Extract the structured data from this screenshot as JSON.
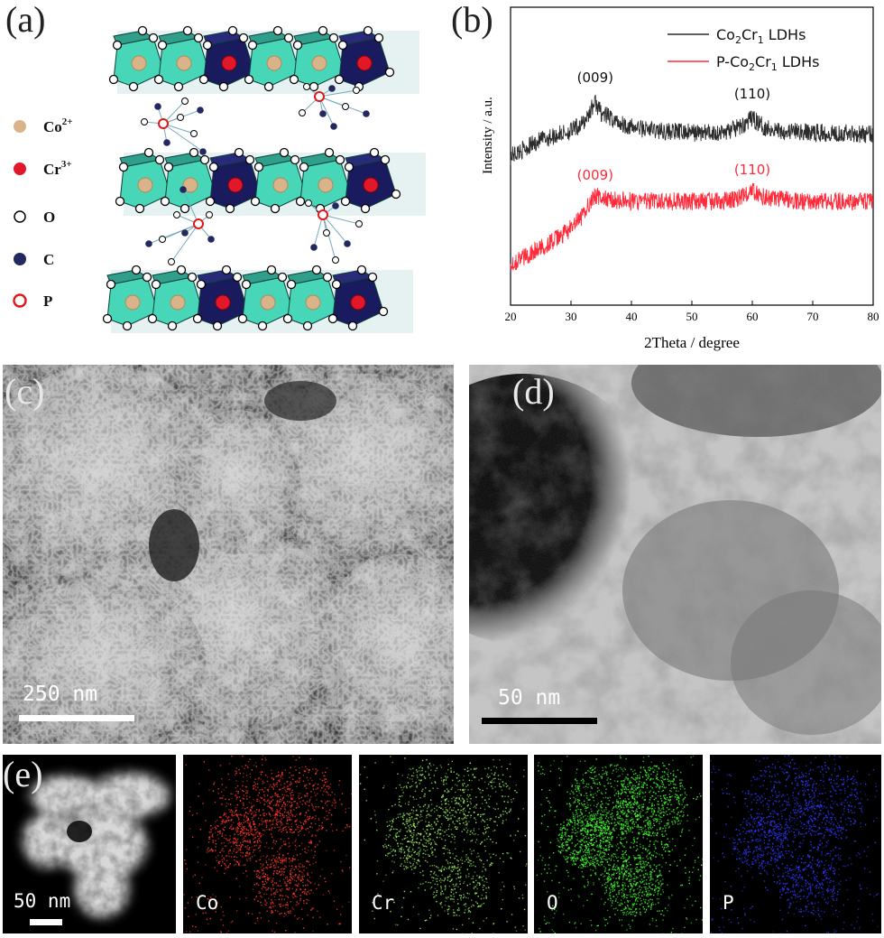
{
  "panel_a": {
    "label": "(a)",
    "legend": [
      {
        "symbol": "Co",
        "superscript": "2+",
        "marker": "co-dot"
      },
      {
        "symbol": "Cr",
        "superscript": "3+",
        "marker": "cr-dot"
      },
      {
        "symbol": "O",
        "superscript": "",
        "marker": "o-ring"
      },
      {
        "symbol": "C",
        "superscript": "",
        "marker": "c-dot"
      },
      {
        "symbol": "P",
        "superscript": "",
        "marker": "p-ring"
      }
    ],
    "colors": {
      "octahedron_light": "#48d6b8",
      "octahedron_dark": "#1a1a5e",
      "co": "#d9b48a",
      "cr": "#e0182a",
      "c": "#23285e",
      "p": "#e01818"
    }
  },
  "panel_b": {
    "label": "(b)",
    "chart_data": {
      "type": "line",
      "xlabel": "2Theta / degree",
      "ylabel": "Intensity / a.u.",
      "xlim": [
        20,
        80
      ],
      "x_ticks": [
        "20",
        "30",
        "40",
        "50",
        "60",
        "70",
        "80"
      ],
      "legend_position": "top-right",
      "series": [
        {
          "name": "Co2Cr1 LDHs",
          "legend_label": {
            "a": "Co",
            "sub1": "2",
            "b": "Cr",
            "sub2": "1",
            "c": " LDHs"
          },
          "color": "#2c2c2c",
          "peaks": [
            {
              "label": "(009)",
              "x": 34
            },
            {
              "label": "(110)",
              "x": 60
            }
          ],
          "x": [
            20,
            25,
            30,
            32,
            33,
            34,
            35,
            37,
            40,
            45,
            50,
            55,
            58,
            60,
            62,
            65,
            70,
            75,
            80
          ],
          "y": [
            0.7,
            0.79,
            0.84,
            0.88,
            0.94,
            1.0,
            0.94,
            0.9,
            0.86,
            0.84,
            0.83,
            0.83,
            0.86,
            0.91,
            0.86,
            0.84,
            0.83,
            0.83,
            0.82
          ]
        },
        {
          "name": "P-Co2Cr1 LDHs",
          "legend_label": {
            "a": "P-Co",
            "sub1": "2",
            "b": "Cr",
            "sub2": "1",
            "c": " LDHs"
          },
          "color": "#ff2a3a",
          "peaks": [
            {
              "label": "(009)",
              "x": 34
            },
            {
              "label": "(110)",
              "x": 60
            }
          ],
          "x": [
            20,
            22,
            25,
            28,
            30,
            32,
            33,
            34,
            36,
            40,
            45,
            50,
            55,
            58,
            60,
            62,
            65,
            70,
            75,
            80
          ],
          "y": [
            0.1,
            0.14,
            0.19,
            0.25,
            0.3,
            0.37,
            0.44,
            0.48,
            0.46,
            0.45,
            0.45,
            0.45,
            0.45,
            0.47,
            0.51,
            0.47,
            0.46,
            0.45,
            0.45,
            0.45
          ]
        }
      ]
    }
  },
  "panel_c": {
    "label": "(c)",
    "scale_text": "250 nm"
  },
  "panel_d": {
    "label": "(d)",
    "scale_text": "50 nm"
  },
  "panel_e": {
    "label": "(e)",
    "scale_text": "50 nm",
    "maps": [
      {
        "element": "Co",
        "color": "#ff3a2a"
      },
      {
        "element": "Cr",
        "color": "#9af060"
      },
      {
        "element": "O",
        "color": "#44ff30"
      },
      {
        "element": "P",
        "color": "#3038ff"
      }
    ]
  }
}
